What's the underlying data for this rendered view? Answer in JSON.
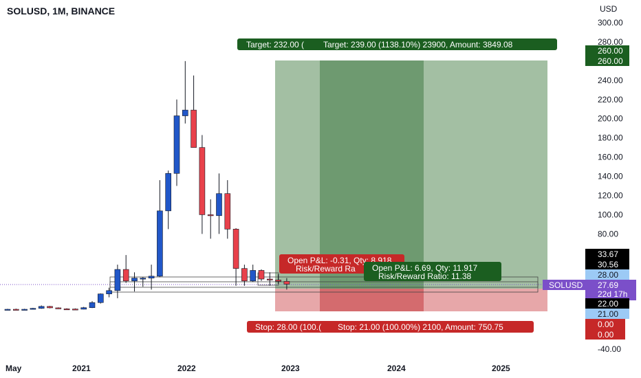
{
  "header": {
    "title": "SOLUSD, 1M, BINANCE",
    "currency": "USD"
  },
  "colors": {
    "up": "#2157c8",
    "down": "#e8414b",
    "target_zone": "#a3bfa3",
    "target_zone_dark": "#6e9a70",
    "stop_zone": "#e7a7a9",
    "stop_zone_dark": "#d46b6e",
    "green_label": "#1b5e20",
    "red_label": "#c62828",
    "price_label": "#7b4fc9",
    "black_label": "#000000",
    "blue_label": "#9ccaf5"
  },
  "chart_data": {
    "type": "candlestick",
    "symbol": "SOLUSD",
    "interval": "1M",
    "exchange": "BINANCE",
    "ylim": [
      -40,
      305
    ],
    "y_ticks": [
      "300.00",
      "280.00",
      "240.00",
      "220.00",
      "200.00",
      "180.00",
      "160.00",
      "140.00",
      "120.00",
      "100.00",
      "80.00",
      "-40.00"
    ],
    "x_ticks": [
      "May",
      "2021",
      "2022",
      "2023",
      "2024",
      "2025"
    ],
    "candles": [
      {
        "i": 0,
        "o": 1.0,
        "h": 2.0,
        "l": 0.5,
        "c": 1.5
      },
      {
        "i": 1,
        "o": 1.5,
        "h": 2.2,
        "l": 1.0,
        "c": 1.3
      },
      {
        "i": 2,
        "o": 1.3,
        "h": 2.0,
        "l": 0.9,
        "c": 1.5
      },
      {
        "i": 3,
        "o": 1.5,
        "h": 3.0,
        "l": 1.2,
        "c": 2.5
      },
      {
        "i": 4,
        "o": 2.5,
        "h": 5.5,
        "l": 2.0,
        "c": 4.5
      },
      {
        "i": 5,
        "o": 4.5,
        "h": 5.0,
        "l": 2.5,
        "c": 3.0
      },
      {
        "i": 6,
        "o": 3.0,
        "h": 3.5,
        "l": 1.8,
        "c": 2.0
      },
      {
        "i": 7,
        "o": 2.0,
        "h": 2.6,
        "l": 1.5,
        "c": 1.8
      },
      {
        "i": 8,
        "o": 1.8,
        "h": 2.4,
        "l": 1.2,
        "c": 1.6
      },
      {
        "i": 9,
        "o": 1.6,
        "h": 4.0,
        "l": 1.4,
        "c": 3.2
      },
      {
        "i": 10,
        "o": 3.2,
        "h": 10.0,
        "l": 2.8,
        "c": 8.5
      },
      {
        "i": 11,
        "o": 8.5,
        "h": 18.0,
        "l": 7.5,
        "c": 17.5
      },
      {
        "i": 12,
        "o": 17.5,
        "h": 24.0,
        "l": 14.0,
        "c": 21.0
      },
      {
        "i": 13,
        "o": 21.0,
        "h": 48.0,
        "l": 13.0,
        "c": 43.0
      },
      {
        "i": 14,
        "o": 43.0,
        "h": 58.0,
        "l": 29.0,
        "c": 31.0
      },
      {
        "i": 15,
        "o": 31.0,
        "h": 40.0,
        "l": 20.0,
        "c": 34.0
      },
      {
        "i": 16,
        "o": 34.0,
        "h": 35.0,
        "l": 25.0,
        "c": 34.0
      },
      {
        "i": 17,
        "o": 34.0,
        "h": 48.0,
        "l": 22.0,
        "c": 36.0
      },
      {
        "i": 18,
        "o": 36.0,
        "h": 136.0,
        "l": 35.0,
        "c": 104.0
      },
      {
        "i": 19,
        "o": 104.0,
        "h": 146.0,
        "l": 85.0,
        "c": 143.0
      },
      {
        "i": 20,
        "o": 143.0,
        "h": 220.0,
        "l": 130.0,
        "c": 203.0
      },
      {
        "i": 21,
        "o": 203.0,
        "h": 260.0,
        "l": 195.0,
        "c": 209.0
      },
      {
        "i": 22,
        "o": 209.0,
        "h": 245.0,
        "l": 170.0,
        "c": 170.0
      },
      {
        "i": 23,
        "o": 170.0,
        "h": 183.0,
        "l": 80.0,
        "c": 100.0
      },
      {
        "i": 24,
        "o": 100.0,
        "h": 116.0,
        "l": 75.0,
        "c": 99.0
      },
      {
        "i": 25,
        "o": 99.0,
        "h": 143.0,
        "l": 80.0,
        "c": 122.0
      },
      {
        "i": 26,
        "o": 122.0,
        "h": 136.0,
        "l": 75.0,
        "c": 85.0
      },
      {
        "i": 27,
        "o": 85.0,
        "h": 86.0,
        "l": 26.0,
        "c": 44.0
      },
      {
        "i": 28,
        "o": 44.0,
        "h": 48.0,
        "l": 26.0,
        "c": 31.0
      },
      {
        "i": 29,
        "o": 31.0,
        "h": 48.0,
        "l": 30.0,
        "c": 42.0
      },
      {
        "i": 30,
        "o": 42.0,
        "h": 43.0,
        "l": 31.0,
        "c": 33.0
      },
      {
        "i": 31,
        "o": 33.0,
        "h": 40.0,
        "l": 26.0,
        "c": 32.0
      },
      {
        "i": 32,
        "o": 32.0,
        "h": 38.0,
        "l": 28.0,
        "c": 30.6
      },
      {
        "i": 33,
        "o": 30.6,
        "h": 34.0,
        "l": 22.0,
        "c": 27.69
      }
    ],
    "position_target": {
      "label_left": "Target: 232.00 (",
      "label_right": "Target: 239.00 (1138.10%) 23900, Amount: 3849.08",
      "stop_left": "Stop: 28.00 (100.(",
      "stop_right": "Stop: 21.00 (100.00%) 2100, Amount: 750.75",
      "pnl1_line1": "Open P&L: -0.31, Qty: 8.918",
      "pnl1_line2": "Risk/Reward Ra",
      "pnl2_line1": "Open P&L: 6.69, Qty: 11.917",
      "pnl2_line2": "Risk/Reward Ratio: 11.38"
    },
    "price_labels": {
      "p260a": "260.00",
      "p260b": "260.00",
      "p3367": "33.67",
      "p3056": "30.56",
      "p2800": "28.00",
      "last": "27.69",
      "countdown": "22d 17h",
      "p2200": "22.00",
      "p2100": "21.00",
      "p000a": "0.00",
      "p000b": "0.00",
      "symbol": "SOLUSD"
    }
  }
}
